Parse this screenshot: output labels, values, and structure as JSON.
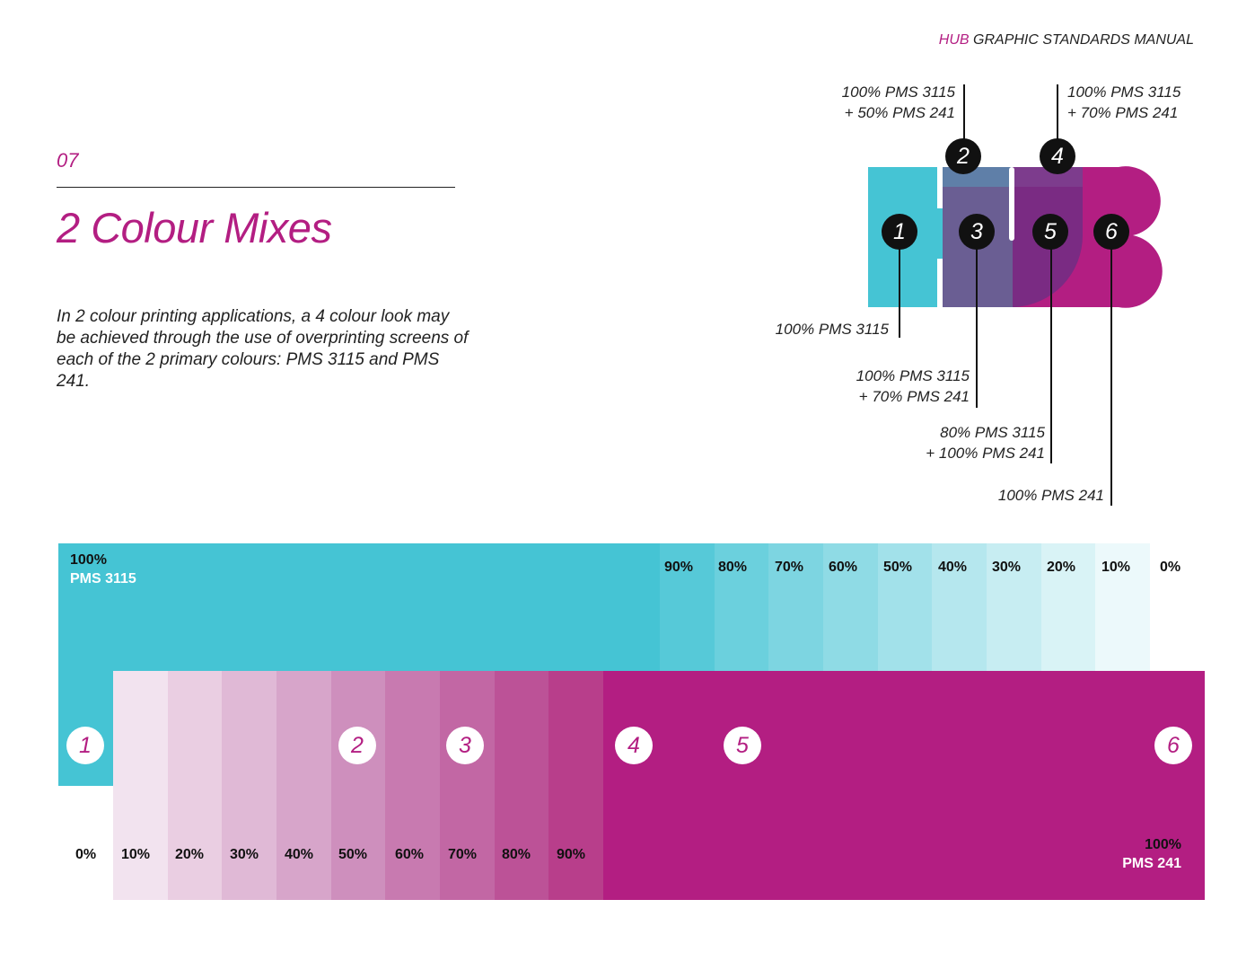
{
  "colors": {
    "pms3115": "#45c4d4",
    "pms241": "#b31e82"
  },
  "header": {
    "brand": "HUB",
    "rest": "GRAPHIC STANDARDS MANUAL"
  },
  "section": {
    "number": "07",
    "title": "2 Colour Mixes"
  },
  "intro": "In 2 colour printing applications, a 4 colour look may be achieved through the use of overprinting screens of each of the 2 primary colours: PMS 3115 and PMS 241.",
  "logo_callouts": [
    {
      "n": "1",
      "line1": "100% PMS 3115",
      "line2": ""
    },
    {
      "n": "2",
      "line1": "100% PMS 3115",
      "line2": "+ 50% PMS 241"
    },
    {
      "n": "3",
      "line1": "100% PMS 3115",
      "line2": "+ 70% PMS 241"
    },
    {
      "n": "4",
      "line1": "100% PMS 3115",
      "line2": "+ 70% PMS 241"
    },
    {
      "n": "5",
      "line1": "80% PMS 3115",
      "line2": "+ 100% PMS 241"
    },
    {
      "n": "6",
      "line1": "100% PMS 241",
      "line2": ""
    }
  ],
  "cyan_scale": {
    "full_label_1": "100%",
    "full_label_2": "PMS 3115",
    "steps": [
      "90%",
      "80%",
      "70%",
      "60%",
      "50%",
      "40%",
      "30%",
      "20%",
      "10%",
      "0%"
    ]
  },
  "magenta_scale": {
    "steps": [
      "0%",
      "10%",
      "20%",
      "30%",
      "40%",
      "50%",
      "60%",
      "70%",
      "80%",
      "90%"
    ],
    "full_label_1": "100%",
    "full_label_2": "PMS 241"
  },
  "swatch_markers": [
    "1",
    "2",
    "3",
    "4",
    "5",
    "6"
  ]
}
